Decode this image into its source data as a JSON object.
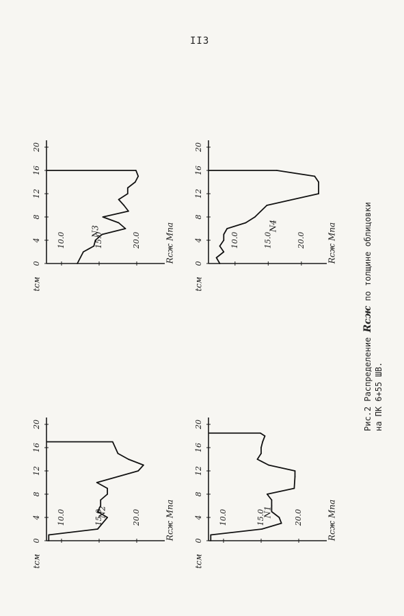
{
  "page_number": "II3",
  "caption": {
    "prefix": "Рис.2 Распределение",
    "symbol": "Rсж",
    "suffix": "по толщине облицовки",
    "line2": "на ПК 6+55 ШВ."
  },
  "chart_data": [
    {
      "type": "line",
      "label": "N3",
      "ylabel": "Rсж Mпа",
      "xlabel": "tсм",
      "x_ticks": [
        "0",
        "4",
        "8",
        "12",
        "16",
        "20"
      ],
      "y_ticks": [
        "10.0",
        "15.0",
        "20.0"
      ],
      "xlim": [
        0,
        20
      ],
      "ylim": [
        8,
        23
      ],
      "x": [
        0,
        2,
        3,
        4,
        5,
        6,
        7,
        8,
        9,
        10,
        11,
        12,
        13,
        14,
        15,
        16
      ],
      "y": [
        12.1,
        12.9,
        14.3,
        14.5,
        15.4,
        18.5,
        17.6,
        15.5,
        18.9,
        18.3,
        17.6,
        18.8,
        18.8,
        19.8,
        20.2,
        19.9
      ],
      "end_drop_x": 16
    },
    {
      "type": "line",
      "label": "N4",
      "ylabel": "Rсж Mпа",
      "xlabel": "tсм",
      "x_ticks": [
        "0",
        "4",
        "8",
        "12",
        "16",
        "20"
      ],
      "y_ticks": [
        "10.0",
        "15.0",
        "20.0"
      ],
      "xlim": [
        0,
        20
      ],
      "ylim": [
        6,
        23
      ],
      "x": [
        0,
        1,
        2,
        3,
        4,
        5,
        6,
        7,
        8,
        10,
        12,
        14,
        15,
        16
      ],
      "y": [
        7.7,
        7.2,
        8.3,
        7.7,
        8.3,
        8.3,
        8.8,
        11.6,
        13.0,
        14.8,
        22.6,
        22.6,
        22.0,
        16.3
      ],
      "end_drop_x": 16
    },
    {
      "type": "line",
      "label": "N2",
      "ylabel": "Rсж Mпа",
      "xlabel": "tсм",
      "x_ticks": [
        "0",
        "4",
        "8",
        "12",
        "16",
        "20"
      ],
      "y_ticks": [
        "10.0",
        "15.0",
        "20.0"
      ],
      "xlim": [
        0,
        20
      ],
      "ylim": [
        8,
        23
      ],
      "x": [
        0,
        1,
        2,
        4,
        5,
        6,
        7,
        8,
        9,
        10,
        12,
        13,
        14,
        15,
        17
      ],
      "y": [
        8.3,
        8.3,
        14.8,
        16.1,
        14.8,
        15.2,
        15.2,
        16.1,
        16.1,
        14.7,
        20.2,
        20.9,
        18.9,
        17.5,
        16.8
      ],
      "end_drop_x": 17
    },
    {
      "type": "line",
      "label": "N1",
      "ylabel": "Rсж Mпа",
      "xlabel": "tсм",
      "x_ticks": [
        "0",
        "4",
        "8",
        "12",
        "16",
        "20"
      ],
      "y_ticks": [
        "10.0",
        "15.0",
        "20.0"
      ],
      "xlim": [
        0,
        20
      ],
      "ylim": [
        8,
        23
      ],
      "x": [
        0,
        1,
        2,
        3,
        4,
        5,
        6,
        7,
        8,
        9,
        11,
        12,
        13,
        14,
        15,
        16,
        17,
        18,
        18.5
      ],
      "y": [
        8.3,
        8.3,
        15.1,
        17.7,
        17.4,
        16.4,
        16.4,
        16.4,
        15.8,
        19.4,
        19.5,
        19.5,
        16.0,
        14.5,
        15.0,
        15.0,
        15.2,
        15.5,
        14.9
      ],
      "end_drop_x": 18.5
    }
  ]
}
